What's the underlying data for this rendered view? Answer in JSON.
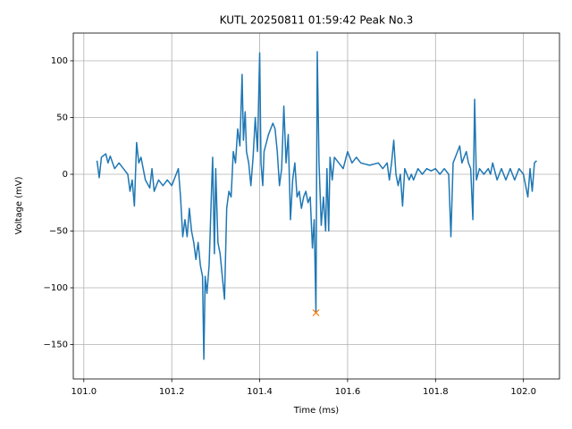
{
  "chart_data": {
    "type": "line",
    "title": "KUTL 20250811 01:59:42 Peak No.3",
    "xlabel": "Time (ms)",
    "ylabel": "Voltage (mV)",
    "color": "#1f77b4",
    "grid": true,
    "x": [
      101.03,
      101.035,
      101.04,
      101.05,
      101.055,
      101.06,
      101.07,
      101.08,
      101.09,
      101.1,
      101.105,
      101.11,
      101.115,
      101.12,
      101.125,
      101.13,
      101.14,
      101.15,
      101.155,
      101.16,
      101.17,
      101.18,
      101.19,
      101.2,
      101.21,
      101.215,
      101.22,
      101.225,
      101.23,
      101.235,
      101.24,
      101.245,
      101.25,
      101.255,
      101.26,
      101.265,
      101.27,
      101.273,
      101.276,
      101.28,
      101.285,
      101.29,
      101.293,
      101.297,
      101.3,
      101.305,
      101.31,
      101.315,
      101.32,
      101.325,
      101.33,
      101.335,
      101.34,
      101.345,
      101.35,
      101.355,
      101.36,
      101.363,
      101.367,
      101.37,
      101.375,
      101.38,
      101.385,
      101.39,
      101.395,
      101.4,
      101.403,
      101.407,
      101.41,
      101.42,
      101.43,
      101.435,
      101.44,
      101.445,
      101.45,
      101.455,
      101.46,
      101.465,
      101.47,
      101.475,
      101.48,
      101.485,
      101.49,
      101.495,
      101.5,
      101.505,
      101.51,
      101.515,
      101.52,
      101.524,
      101.528,
      101.531,
      101.535,
      101.54,
      101.545,
      101.55,
      101.553,
      101.557,
      101.56,
      101.565,
      101.57,
      101.58,
      101.59,
      101.6,
      101.61,
      101.62,
      101.63,
      101.65,
      101.67,
      101.68,
      101.69,
      101.695,
      101.7,
      101.705,
      101.71,
      101.715,
      101.72,
      101.725,
      101.73,
      101.74,
      101.745,
      101.75,
      101.76,
      101.77,
      101.78,
      101.79,
      101.8,
      101.81,
      101.82,
      101.83,
      101.835,
      101.84,
      101.85,
      101.855,
      101.86,
      101.87,
      101.875,
      101.88,
      101.885,
      101.889,
      101.893,
      101.9,
      101.91,
      101.92,
      101.925,
      101.93,
      101.94,
      101.95,
      101.96,
      101.97,
      101.98,
      101.99,
      102.0,
      102.01,
      102.015,
      102.02,
      102.025,
      102.03
    ],
    "values": [
      12,
      -3,
      15,
      18,
      10,
      16,
      5,
      10,
      5,
      0,
      -15,
      -5,
      -28,
      28,
      10,
      15,
      -5,
      -12,
      5,
      -15,
      -5,
      -10,
      -5,
      -10,
      0,
      5,
      -20,
      -55,
      -40,
      -55,
      -30,
      -50,
      -60,
      -75,
      -60,
      -80,
      -90,
      -163,
      -90,
      -105,
      -80,
      -20,
      15,
      -70,
      5,
      -60,
      -70,
      -90,
      -110,
      -30,
      -15,
      -20,
      20,
      10,
      40,
      25,
      88,
      30,
      55,
      20,
      10,
      -10,
      15,
      50,
      20,
      107,
      10,
      -10,
      20,
      35,
      45,
      40,
      20,
      -10,
      5,
      60,
      10,
      35,
      -40,
      -5,
      10,
      -20,
      -15,
      -30,
      -20,
      -15,
      -25,
      -20,
      -65,
      -40,
      -122,
      108,
      10,
      -45,
      -20,
      -50,
      5,
      -50,
      15,
      -5,
      15,
      10,
      5,
      20,
      10,
      15,
      10,
      8,
      10,
      5,
      10,
      -5,
      10,
      30,
      0,
      -10,
      0,
      -28,
      5,
      -5,
      0,
      -5,
      5,
      0,
      5,
      3,
      5,
      0,
      5,
      0,
      -55,
      10,
      20,
      25,
      10,
      20,
      10,
      5,
      -40,
      66,
      -5,
      5,
      0,
      5,
      0,
      10,
      -5,
      5,
      -5,
      5,
      -5,
      5,
      0,
      -20,
      5,
      -15,
      10,
      12
    ],
    "peak": {
      "x": 101.528,
      "y": -122,
      "color": "#ff7f0e"
    },
    "xlim": [
      100.976,
      102.082
    ],
    "ylim": [
      -180.3,
      124.4
    ],
    "xticks": [
      {
        "value": 101.0,
        "label": "101.0"
      },
      {
        "value": 101.2,
        "label": "101.2"
      },
      {
        "value": 101.4,
        "label": "101.4"
      },
      {
        "value": 101.6,
        "label": "101.6"
      },
      {
        "value": 101.8,
        "label": "101.8"
      },
      {
        "value": 102.0,
        "label": "102.0"
      }
    ],
    "yticks": [
      {
        "value": -150,
        "label": "−150"
      },
      {
        "value": -100,
        "label": "−100"
      },
      {
        "value": -50,
        "label": "−50"
      },
      0,
      50,
      100
    ]
  }
}
